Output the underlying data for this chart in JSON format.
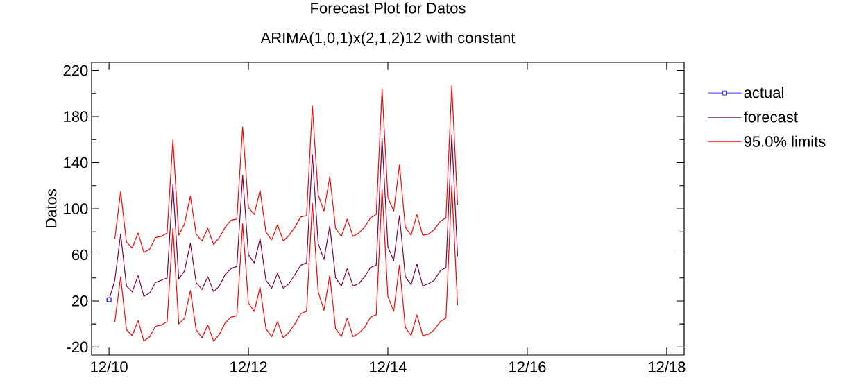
{
  "chart_data": {
    "type": "line",
    "title": "Forecast Plot for Datos",
    "subtitle": "ARIMA(1,0,1)x(2,1,2)12 with constant",
    "ylabel": "Datos",
    "xlim": [
      "2010-09",
      "2019-03"
    ],
    "ylim": [
      -27,
      227
    ],
    "xticks": [
      {
        "value": "2010-12",
        "label": "12/10"
      },
      {
        "value": "2012-12",
        "label": "12/12"
      },
      {
        "value": "2014-12",
        "label": "12/14"
      },
      {
        "value": "2016-12",
        "label": "12/16"
      },
      {
        "value": "2018-12",
        "label": "12/18"
      }
    ],
    "yticks": [
      -20,
      20,
      60,
      100,
      140,
      180,
      220
    ],
    "grid": false,
    "legend": "right",
    "series": [
      {
        "name": "actual",
        "color": "#0000ff",
        "marker": "square",
        "x": [
          "2010-12"
        ],
        "values": [
          21
        ]
      },
      {
        "name": "forecast",
        "color": "#800040",
        "marker": "none",
        "x": [
          "2010-12",
          "2011-01",
          "2011-02",
          "2011-03",
          "2011-04",
          "2011-05",
          "2011-06",
          "2011-07",
          "2011-08",
          "2011-09",
          "2011-10",
          "2011-11",
          "2011-12",
          "2012-01",
          "2012-02",
          "2012-03",
          "2012-04",
          "2012-05",
          "2012-06",
          "2012-07",
          "2012-08",
          "2012-09",
          "2012-10",
          "2012-11",
          "2012-12",
          "2013-01",
          "2013-02",
          "2013-03",
          "2013-04",
          "2013-05",
          "2013-06",
          "2013-07",
          "2013-08",
          "2013-09",
          "2013-10",
          "2013-11",
          "2013-12",
          "2014-01",
          "2014-02",
          "2014-03",
          "2014-04",
          "2014-05",
          "2014-06",
          "2014-07",
          "2014-08",
          "2014-09",
          "2014-10",
          "2014-11",
          "2014-12",
          "2015-01",
          "2015-02",
          "2015-03",
          "2015-04",
          "2015-05",
          "2015-06",
          "2015-07",
          "2015-08",
          "2015-09",
          "2015-10",
          "2015-11",
          "2015-12"
        ],
        "values": [
          21,
          38,
          78,
          33,
          28,
          42,
          24,
          27,
          36,
          38,
          40,
          121,
          39,
          46,
          70,
          36,
          30,
          41,
          28,
          33,
          43,
          48,
          50,
          129,
          60,
          53,
          74,
          38,
          31,
          44,
          31,
          35,
          43,
          51,
          53,
          147,
          70,
          56,
          85,
          40,
          33,
          48,
          33,
          35,
          41,
          49,
          51,
          161,
          67,
          55,
          94,
          41,
          34,
          52,
          33,
          35,
          38,
          46,
          49,
          164,
          59
        ]
      },
      {
        "name": "95.0% limits",
        "color": "#ff0000",
        "marker": "none",
        "x": [
          "2011-01",
          "2011-02",
          "2011-03",
          "2011-04",
          "2011-05",
          "2011-06",
          "2011-07",
          "2011-08",
          "2011-09",
          "2011-10",
          "2011-11",
          "2011-12",
          "2012-01",
          "2012-02",
          "2012-03",
          "2012-04",
          "2012-05",
          "2012-06",
          "2012-07",
          "2012-08",
          "2012-09",
          "2012-10",
          "2012-11",
          "2012-12",
          "2013-01",
          "2013-02",
          "2013-03",
          "2013-04",
          "2013-05",
          "2013-06",
          "2013-07",
          "2013-08",
          "2013-09",
          "2013-10",
          "2013-11",
          "2013-12",
          "2014-01",
          "2014-02",
          "2014-03",
          "2014-04",
          "2014-05",
          "2014-06",
          "2014-07",
          "2014-08",
          "2014-09",
          "2014-10",
          "2014-11",
          "2014-12",
          "2015-01",
          "2015-02",
          "2015-03",
          "2015-04",
          "2015-05",
          "2015-06",
          "2015-07",
          "2015-08",
          "2015-09",
          "2015-10",
          "2015-11",
          "2015-12"
        ],
        "values": [
          74,
          115,
          71,
          66,
          79,
          62,
          65,
          75,
          76,
          79,
          160,
          77,
          87,
          111,
          78,
          72,
          83,
          69,
          75,
          84,
          90,
          91,
          171,
          101,
          95,
          116,
          80,
          73,
          86,
          72,
          77,
          84,
          93,
          94,
          189,
          112,
          98,
          128,
          83,
          76,
          91,
          76,
          79,
          84,
          92,
          95,
          204,
          110,
          98,
          138,
          84,
          77,
          95,
          77,
          78,
          82,
          89,
          92,
          207,
          103
        ]
      },
      {
        "color": "#ff0000",
        "marker": "none",
        "x": [
          "2011-01",
          "2011-02",
          "2011-03",
          "2011-04",
          "2011-05",
          "2011-06",
          "2011-07",
          "2011-08",
          "2011-09",
          "2011-10",
          "2011-11",
          "2011-12",
          "2012-01",
          "2012-02",
          "2012-03",
          "2012-04",
          "2012-05",
          "2012-06",
          "2012-07",
          "2012-08",
          "2012-09",
          "2012-10",
          "2012-11",
          "2012-12",
          "2013-01",
          "2013-02",
          "2013-03",
          "2013-04",
          "2013-05",
          "2013-06",
          "2013-07",
          "2013-08",
          "2013-09",
          "2013-10",
          "2013-11",
          "2013-12",
          "2014-01",
          "2014-02",
          "2014-03",
          "2014-04",
          "2014-05",
          "2014-06",
          "2014-07",
          "2014-08",
          "2014-09",
          "2014-10",
          "2014-11",
          "2014-12",
          "2015-01",
          "2015-02",
          "2015-03",
          "2015-04",
          "2015-05",
          "2015-06",
          "2015-07",
          "2015-08",
          "2015-09",
          "2015-10",
          "2015-11",
          "2015-12"
        ],
        "values": [
          2,
          41,
          -5,
          -10,
          3,
          -15,
          -11,
          -2,
          -1,
          2,
          83,
          0,
          5,
          29,
          -5,
          -12,
          -1,
          -15,
          -9,
          1,
          6,
          7,
          87,
          18,
          11,
          32,
          -4,
          -11,
          2,
          -12,
          -7,
          0,
          9,
          11,
          105,
          28,
          12,
          42,
          -4,
          -11,
          5,
          -11,
          -8,
          -3,
          6,
          8,
          117,
          24,
          11,
          51,
          -3,
          -10,
          8,
          -10,
          -9,
          -5,
          2,
          5,
          120,
          16
        ]
      }
    ]
  }
}
